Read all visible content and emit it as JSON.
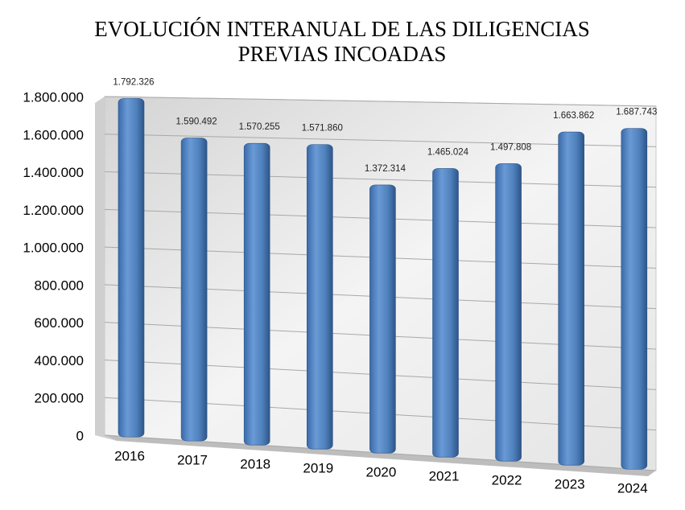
{
  "chart_data": {
    "type": "bar",
    "title": [
      "EVOLUCIÓN INTERANUAL DE LAS DILIGENCIAS",
      "PREVIAS INCOADAS"
    ],
    "categories": [
      "2016",
      "2017",
      "2018",
      "2019",
      "2020",
      "2021",
      "2022",
      "2023",
      "2024"
    ],
    "values": [
      1792326,
      1590492,
      1570255,
      1571860,
      1372314,
      1465024,
      1497808,
      1663862,
      1687743
    ],
    "value_labels": [
      "1.792.326",
      "1.590.492",
      "1.570.255",
      "1.571.860",
      "1.372.314",
      "1.465.024",
      "1.497.808",
      "1.663.862",
      "1.687.743"
    ],
    "color": "#4f81bd",
    "ylim": [
      0,
      1800000
    ],
    "yticks": [
      0,
      {
        "value": 200000,
        "label": "200.000"
      },
      {
        "value": 400000,
        "label": "400.000"
      },
      {
        "value": 600000,
        "label": "600.000"
      },
      {
        "value": 800000,
        "label": "800.000"
      },
      {
        "value": 1000000,
        "label": "1.000.000"
      },
      {
        "value": 1200000,
        "label": "1.200.000"
      },
      {
        "value": 1400000,
        "label": "1.400.000"
      },
      {
        "value": 1600000,
        "label": "1.600.000"
      },
      {
        "value": 1800000,
        "label": "1.800.000"
      }
    ],
    "grid": true
  }
}
